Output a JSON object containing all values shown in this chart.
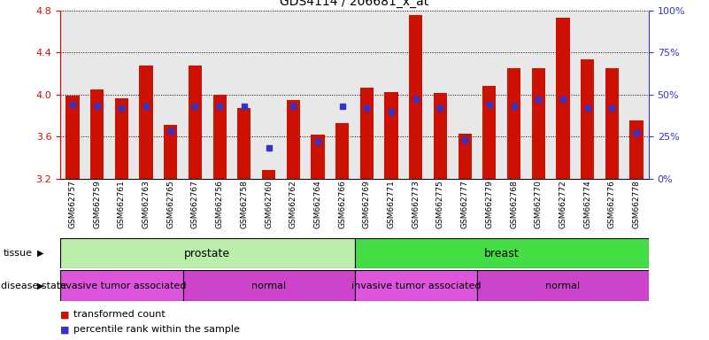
{
  "title": "GDS4114 / 206681_x_at",
  "samples": [
    "GSM662757",
    "GSM662759",
    "GSM662761",
    "GSM662763",
    "GSM662765",
    "GSM662767",
    "GSM662756",
    "GSM662758",
    "GSM662760",
    "GSM662762",
    "GSM662764",
    "GSM662766",
    "GSM662769",
    "GSM662771",
    "GSM662773",
    "GSM662775",
    "GSM662777",
    "GSM662779",
    "GSM662768",
    "GSM662770",
    "GSM662772",
    "GSM662774",
    "GSM662776",
    "GSM662778"
  ],
  "transformed_count": [
    3.99,
    4.05,
    3.96,
    4.27,
    3.71,
    4.27,
    4.0,
    3.87,
    3.28,
    3.95,
    3.62,
    3.73,
    4.06,
    4.02,
    4.75,
    4.01,
    3.63,
    4.08,
    4.25,
    4.25,
    4.73,
    4.33,
    4.25,
    3.75
  ],
  "percentile_rank": [
    44,
    43,
    42,
    43,
    28,
    43,
    43,
    43,
    18,
    43,
    22,
    43,
    42,
    40,
    47,
    42,
    23,
    44,
    43,
    47,
    47,
    42,
    42,
    27
  ],
  "ymin": 3.2,
  "ymax": 4.8,
  "yticks_left": [
    3.2,
    3.6,
    4.0,
    4.4,
    4.8
  ],
  "yticks_right": [
    0,
    25,
    50,
    75,
    100
  ],
  "bar_color": "#cc1100",
  "marker_color": "#3333cc",
  "tissue_groups": [
    {
      "label": "prostate",
      "start": 0,
      "end": 12,
      "color": "#bbeeaa"
    },
    {
      "label": "breast",
      "start": 12,
      "end": 24,
      "color": "#44dd44"
    }
  ],
  "disease_groups": [
    {
      "label": "invasive tumor associated",
      "start": 0,
      "end": 5,
      "color": "#dd55dd"
    },
    {
      "label": "normal",
      "start": 5,
      "end": 12,
      "color": "#cc44cc"
    },
    {
      "label": "invasive tumor associated",
      "start": 12,
      "end": 17,
      "color": "#dd55dd"
    },
    {
      "label": "normal",
      "start": 17,
      "end": 24,
      "color": "#cc44cc"
    }
  ],
  "tissue_label": "tissue",
  "disease_label": "disease state",
  "legend_items": [
    {
      "label": "transformed count",
      "color": "#cc1100"
    },
    {
      "label": "percentile rank within the sample",
      "color": "#3333cc"
    }
  ],
  "bg_color": "#e8e8e8"
}
